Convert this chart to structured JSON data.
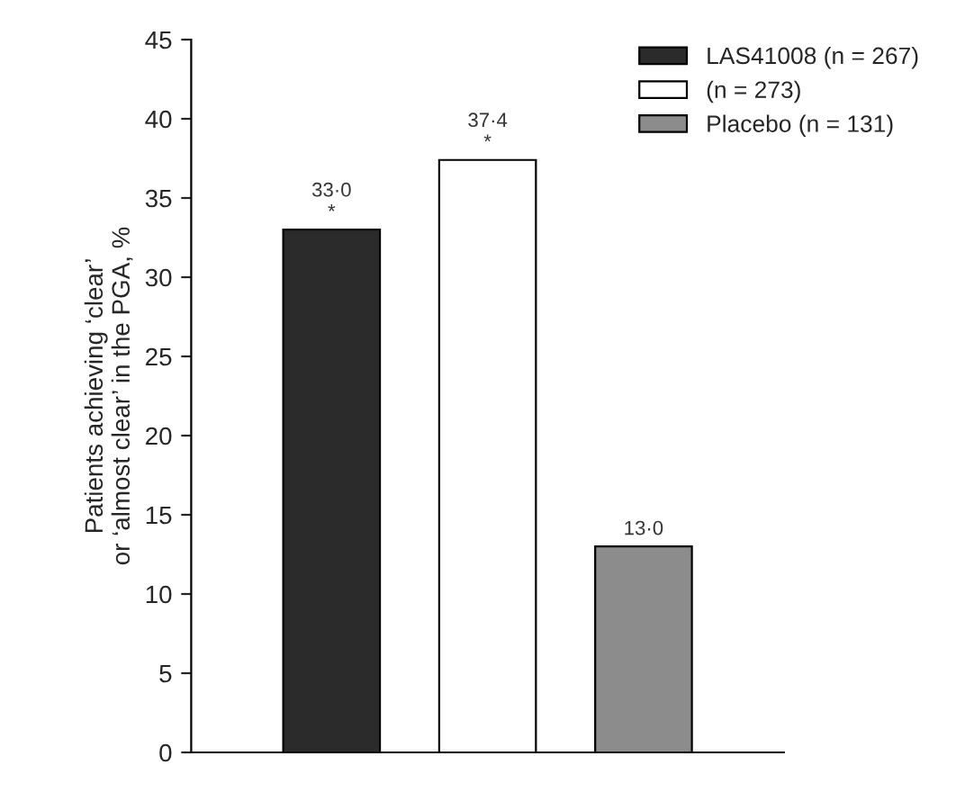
{
  "chart_data": {
    "type": "bar",
    "ylabel": "Patients achieving ‘clear’\nor ‘almost clear’ in the PGA, %",
    "categories": [
      null,
      null,
      null
    ],
    "series": [
      {
        "name": "LAS41008 (n = 267)",
        "color": "#2b2b2b",
        "values": [
          33.0,
          null,
          null
        ],
        "value_labels": [
          "33·0\n*",
          null,
          null
        ]
      },
      {
        "name": "(n = 273)",
        "color": "#ffffff",
        "values": [
          null,
          37.4,
          null
        ],
        "value_labels": [
          null,
          "37·4\n*",
          null
        ]
      },
      {
        "name": "Placebo (n = 131)",
        "color": "#8c8c8c",
        "values": [
          null,
          null,
          13.0
        ],
        "value_labels": [
          null,
          null,
          "13·0"
        ]
      }
    ],
    "ylim": [
      0,
      45
    ],
    "yticks": [
      0,
      5,
      10,
      15,
      20,
      25,
      30,
      35,
      40,
      45
    ],
    "legend": "top right"
  }
}
